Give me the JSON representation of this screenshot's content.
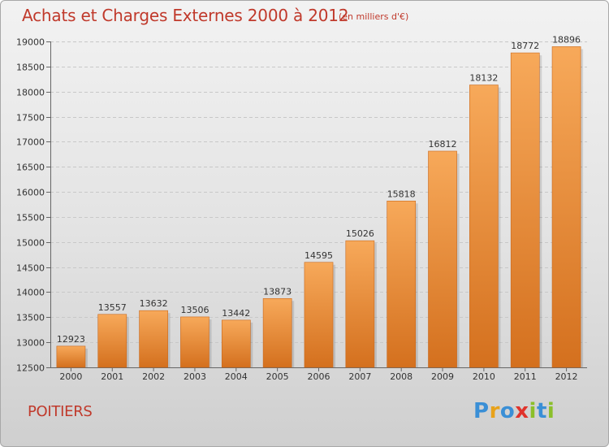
{
  "title": "Achats et Charges Externes 2000 à 2012",
  "subtitle": "(en milliers d'€)",
  "city": "POITIERS",
  "logo": {
    "text": "Proxiti",
    "letters": [
      {
        "ch": "P",
        "color": "#3a8fd6"
      },
      {
        "ch": "r",
        "color": "#e8a21a"
      },
      {
        "ch": "o",
        "color": "#3a8fd6"
      },
      {
        "ch": "x",
        "color": "#e0332c"
      },
      {
        "ch": "i",
        "color": "#8bbf2a"
      },
      {
        "ch": "t",
        "color": "#3a8fd6"
      },
      {
        "ch": "i",
        "color": "#8bbf2a"
      }
    ]
  },
  "colors": {
    "bar_top": "#f7a95a",
    "bar_bottom": "#d4701e",
    "title": "#c0392b",
    "grid": "#c8c8c8"
  },
  "chart_data": {
    "type": "bar",
    "title": "Achats et Charges Externes 2000 à 2012",
    "subtitle": "(en milliers d'€)",
    "xlabel": "",
    "ylabel": "",
    "categories": [
      "2000",
      "2001",
      "2002",
      "2003",
      "2004",
      "2005",
      "2006",
      "2007",
      "2008",
      "2009",
      "2010",
      "2011",
      "2012"
    ],
    "values": [
      12923,
      13557,
      13632,
      13506,
      13442,
      13873,
      14595,
      15026,
      15818,
      16812,
      18132,
      18772,
      18896
    ],
    "ylim": [
      12500,
      19000
    ],
    "yticks": [
      12500,
      13000,
      13500,
      14000,
      14500,
      15000,
      15500,
      16000,
      16500,
      17000,
      17500,
      18000,
      18500,
      19000
    ],
    "grid": true,
    "data_labels": true
  }
}
